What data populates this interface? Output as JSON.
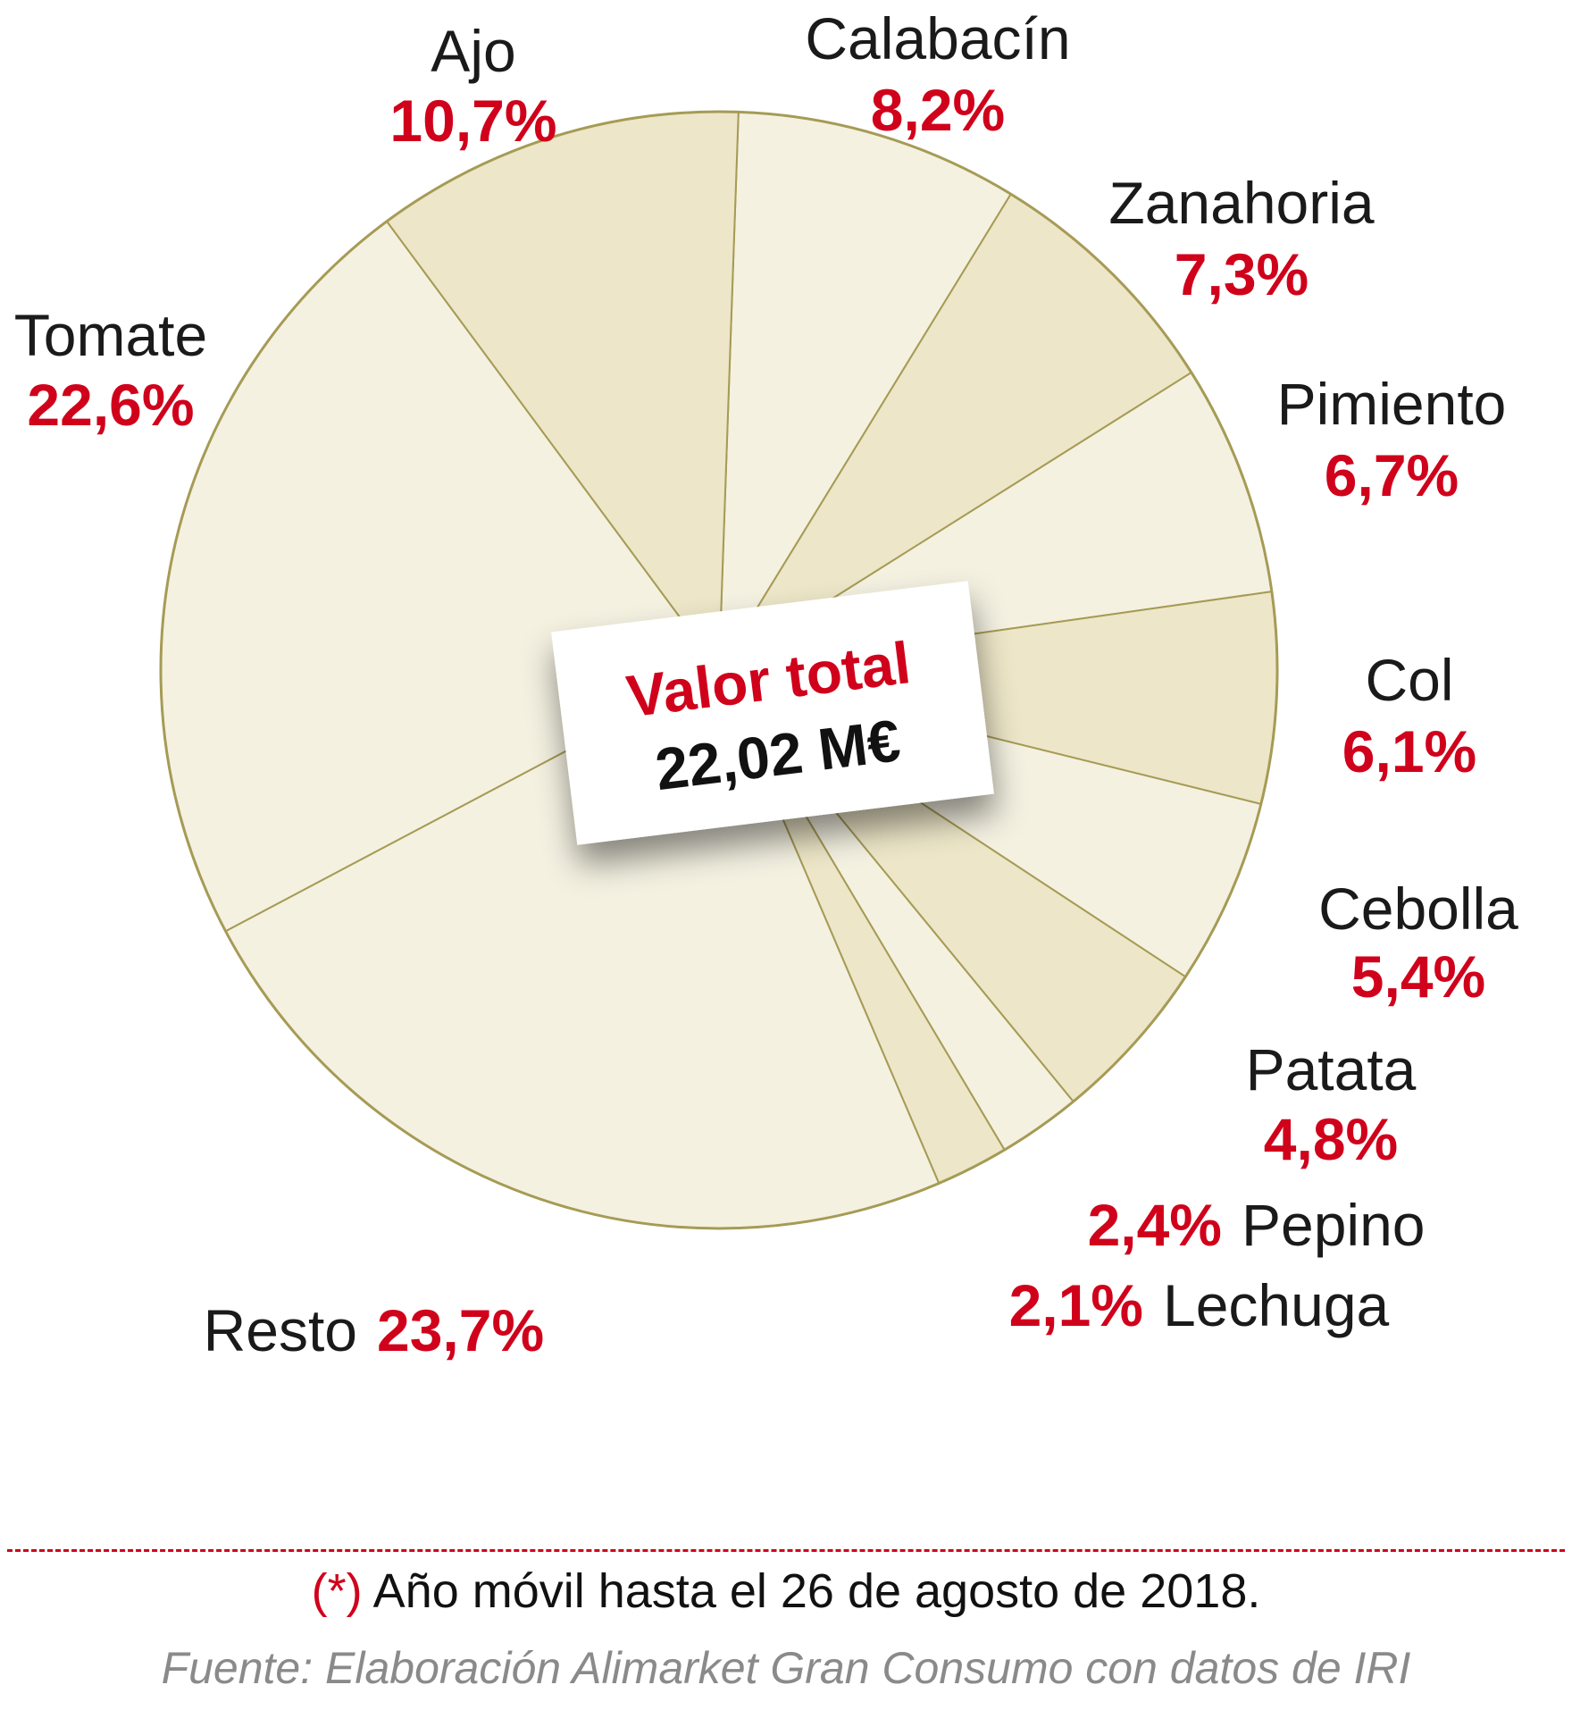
{
  "chart_data": {
    "type": "pie",
    "categories": [
      "Calabacín",
      "Zanahoria",
      "Pimiento",
      "Col",
      "Cebolla",
      "Patata",
      "Pepino",
      "Lechuga",
      "Resto",
      "Tomate",
      "Ajo"
    ],
    "values": [
      8.2,
      7.3,
      6.7,
      6.1,
      5.4,
      4.8,
      2.4,
      2.1,
      23.7,
      22.6,
      10.7
    ],
    "value_labels": [
      "8,2%",
      "7,3%",
      "6,7%",
      "6,1%",
      "5,4%",
      "4,8%",
      "2,4%",
      "2,1%",
      "23,7%",
      "22,6%",
      "10,7%"
    ],
    "slice_colors": [
      "#f4f1e1",
      "#ede6c8",
      "#f4f1e1",
      "#ede6c8",
      "#f4f1e1",
      "#ede6c8",
      "#f4f1e1",
      "#ede6c8",
      "#f4f1e1",
      "#f4f1e1",
      "#ede6c8"
    ],
    "edge_color": "#a69b55",
    "start_direction": "top, clockwise",
    "center_box": {
      "title": "Valor total",
      "value": "22,02 M€"
    }
  },
  "footnote": {
    "mark": "(*)",
    "text": " Año móvil hasta el 26 de agosto de 2018."
  },
  "source": "Fuente: Elaboración Alimarket Gran Consumo con datos de IRI",
  "colors": {
    "accent_red": "#d0011b",
    "text": "#1a1a1a",
    "source_gray": "#8a8a8a"
  }
}
